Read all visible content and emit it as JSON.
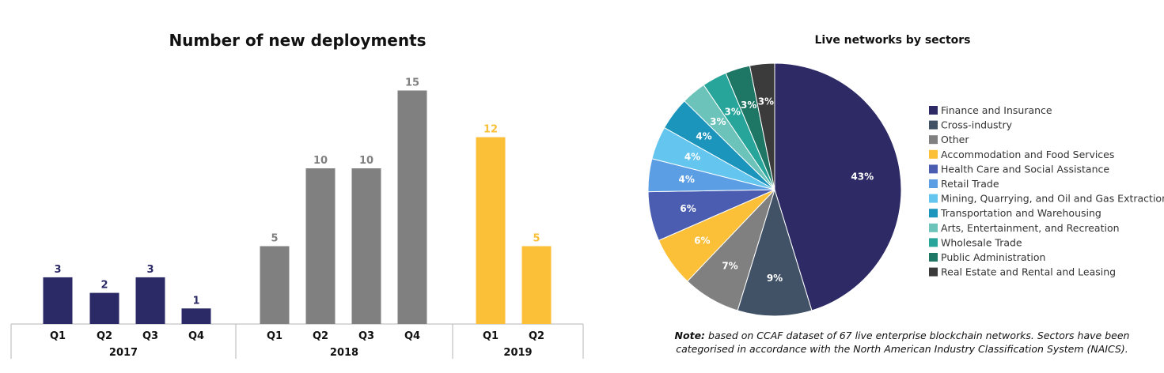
{
  "chart_data": [
    {
      "type": "bar",
      "title": "Number of new deployments",
      "xlabel": "",
      "ylabel": "",
      "ylim": [
        0,
        16
      ],
      "grid": false,
      "groups": [
        {
          "label": "2017",
          "color": "#2b2a66",
          "categories": [
            "Q1",
            "Q2",
            "Q3",
            "Q4"
          ],
          "values": [
            3,
            2,
            3,
            1
          ]
        },
        {
          "label": "2018",
          "color": "#808080",
          "categories": [
            "Q1",
            "Q2",
            "Q3",
            "Q4"
          ],
          "values": [
            5,
            10,
            10,
            15
          ]
        },
        {
          "label": "2019",
          "color": "#fbbf38",
          "categories": [
            "Q1",
            "Q2"
          ],
          "values": [
            12,
            5
          ]
        }
      ]
    },
    {
      "type": "pie",
      "title": "Live networks by sectors",
      "legend": "right",
      "slices": [
        {
          "label": "Finance and Insurance",
          "value": 43,
          "color": "#2d2a66"
        },
        {
          "label": "Cross-industry",
          "value": 9,
          "color": "#415267"
        },
        {
          "label": "Other",
          "value": 7,
          "color": "#808080"
        },
        {
          "label": "Accommodation and Food Services",
          "value": 6,
          "color": "#fbbf38"
        },
        {
          "label": "Health Care and Social Assistance",
          "value": 6,
          "color": "#4a5db0"
        },
        {
          "label": "Retail Trade",
          "value": 4,
          "color": "#5b9ee4"
        },
        {
          "label": "Mining, Quarrying, and Oil and Gas Extraction",
          "value": 4,
          "color": "#64c6ee"
        },
        {
          "label": "Transportation and Warehousing",
          "value": 4,
          "color": "#1c95bd"
        },
        {
          "label": "Arts, Entertainment, and Recreation",
          "value": 3,
          "color": "#6cc3ba"
        },
        {
          "label": "Wholesale Trade",
          "value": 3,
          "color": "#28a59a"
        },
        {
          "label": "Public Administration",
          "value": 3,
          "color": "#1e7765"
        },
        {
          "label": "Real Estate and Rental and Leasing",
          "value": 3,
          "color": "#3b3b3b"
        }
      ]
    }
  ],
  "note": {
    "prefix": "Note:",
    "text": " based on CCAF dataset of 67 live enterprise blockchain networks. Sectors have been categorised in accordance with the North American Industry Classification System (NAICS)."
  }
}
